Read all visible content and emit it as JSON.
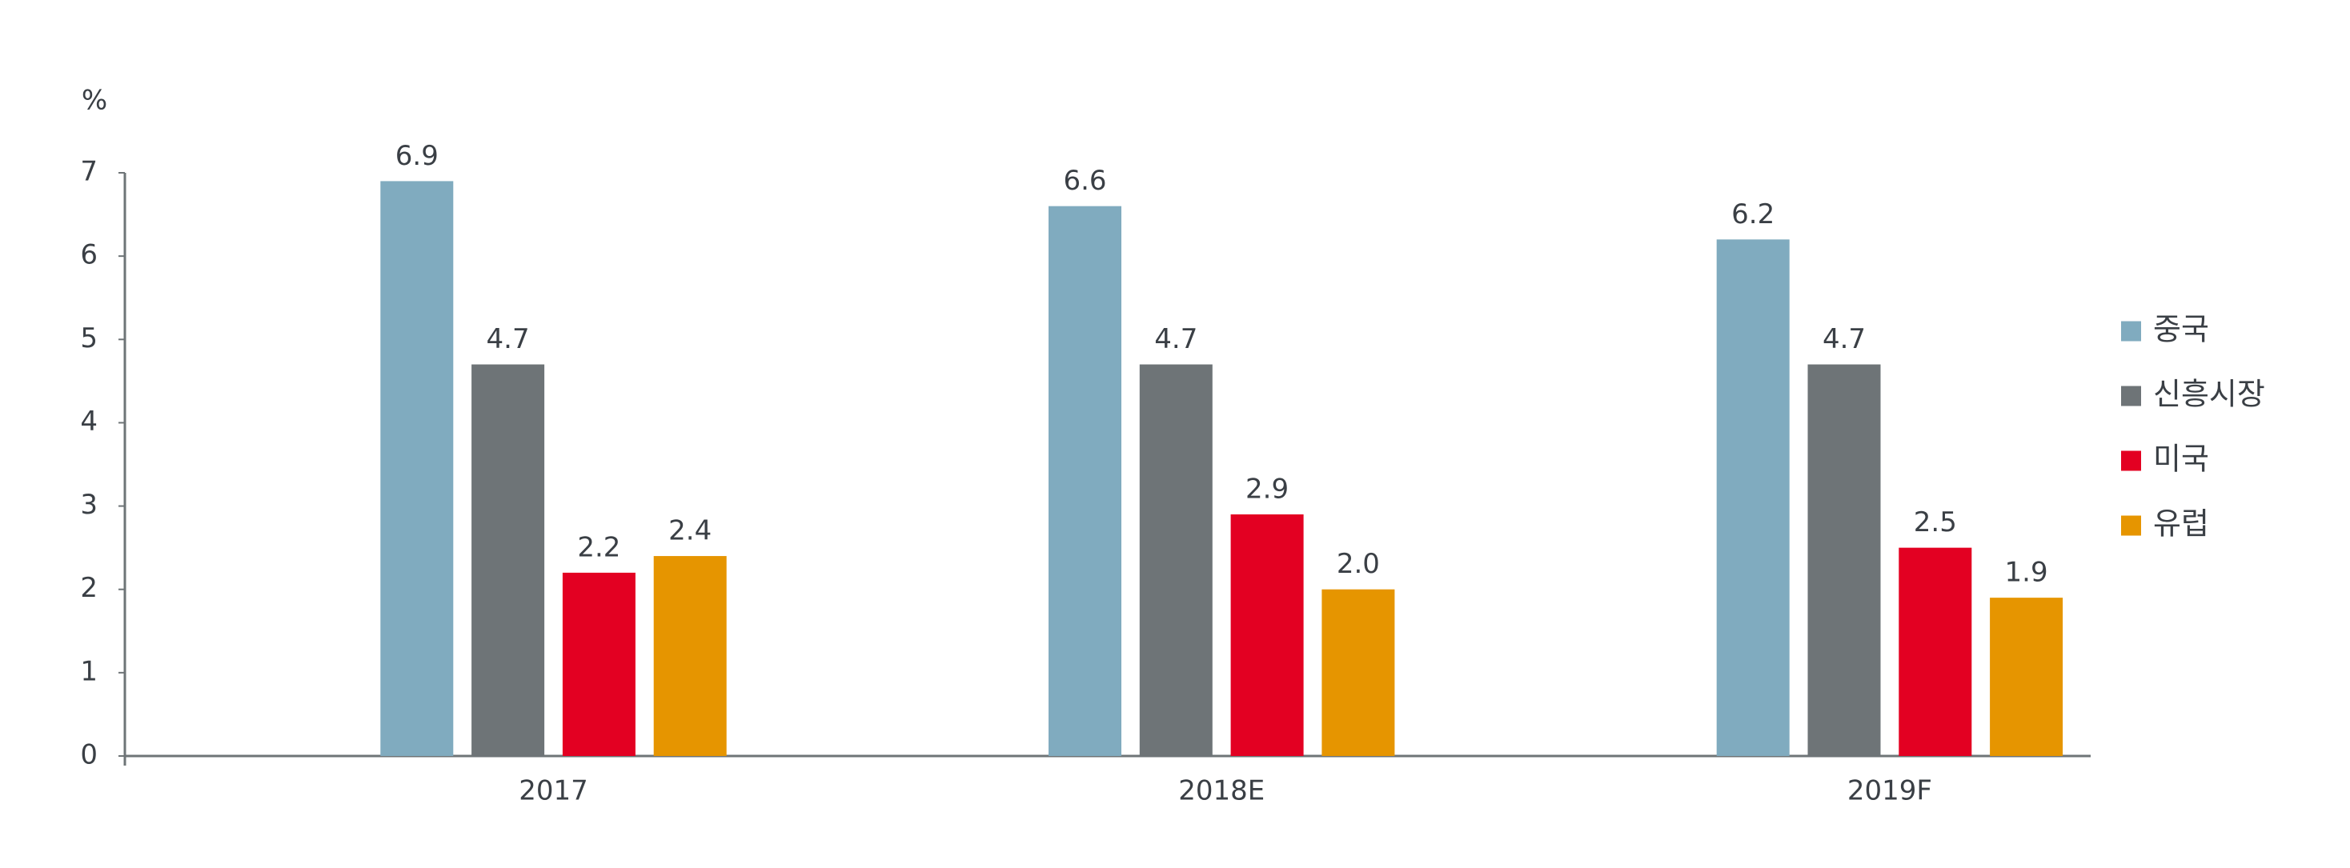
{
  "chart_data": {
    "type": "bar",
    "ylabel": "%",
    "categories": [
      "2017",
      "2018E",
      "2019F"
    ],
    "series": [
      {
        "name": "중국",
        "color": "#80abbf",
        "values": [
          6.9,
          6.6,
          6.2
        ],
        "value_labels": [
          "6.9",
          "6.6",
          "6.2"
        ]
      },
      {
        "name": "신흥시장",
        "color": "#6e7477",
        "values": [
          4.7,
          4.7,
          4.7
        ],
        "value_labels": [
          "4.7",
          "4.7",
          "4.7"
        ]
      },
      {
        "name": "미국",
        "color": "#e30022",
        "values": [
          2.2,
          2.9,
          2.5
        ],
        "value_labels": [
          "2.2",
          "2.9",
          "2.5"
        ]
      },
      {
        "name": "유럽",
        "color": "#e69500",
        "values": [
          2.4,
          2.0,
          1.9
        ],
        "value_labels": [
          "2.4",
          "2.0",
          "1.9"
        ]
      }
    ],
    "ylim": [
      0,
      7
    ],
    "yticks": [
      0,
      1,
      2,
      3,
      4,
      5,
      6,
      7
    ],
    "grid": false,
    "legend": "right"
  }
}
